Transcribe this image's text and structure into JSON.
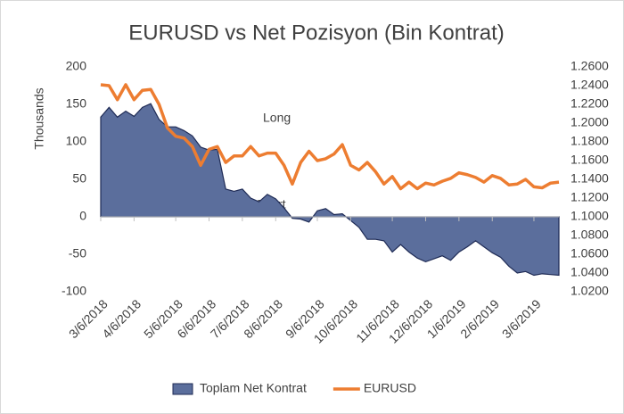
{
  "chart_data": {
    "type": "area_line",
    "title": "EURUSD vs Net Pozisyon (Bin Kontrat)",
    "ylabel": "Thousands",
    "annotations": [
      "Long",
      "Short"
    ],
    "categories": [
      "3/6/2018",
      null,
      null,
      null,
      "4/6/2018",
      null,
      null,
      null,
      null,
      "5/6/2018",
      null,
      null,
      null,
      "6/6/2018",
      null,
      null,
      null,
      "7/6/2018",
      null,
      null,
      null,
      "8/6/2018",
      null,
      null,
      null,
      null,
      "9/6/2018",
      null,
      null,
      null,
      "10/6/2018",
      null,
      null,
      null,
      null,
      "11/6/2018",
      null,
      null,
      null,
      "12/6/2018",
      null,
      null,
      null,
      "1/6/2019",
      null,
      null,
      null,
      "2/6/2019",
      null,
      null,
      null,
      null,
      "3/6/2019",
      null,
      null,
      null
    ],
    "series": [
      {
        "name": "Toplam Net Kontrat",
        "color": "#5b6e9c",
        "stroke": "#1f2b55",
        "values": [
          133,
          146,
          133,
          141,
          134,
          146,
          151,
          130,
          120,
          120,
          115,
          108,
          93,
          89,
          90,
          37,
          34,
          37,
          25,
          20,
          30,
          24,
          12,
          -2,
          -3,
          -7,
          8,
          11,
          3,
          4,
          -5,
          -14,
          -30,
          -30,
          -32,
          -47,
          -37,
          -47,
          -55,
          -60,
          -56,
          -52,
          -58,
          -47,
          -40,
          -32,
          -40,
          -48,
          -54,
          -66,
          -75,
          -73,
          -78,
          -76,
          -77,
          -78
        ]
      },
      {
        "name": "EURUSD",
        "color": "#ed7d31",
        "axis": "y2",
        "values": [
          1.241,
          1.24,
          1.225,
          1.241,
          1.225,
          1.235,
          1.236,
          1.22,
          1.195,
          1.186,
          1.184,
          1.175,
          1.155,
          1.172,
          1.175,
          1.158,
          1.165,
          1.165,
          1.175,
          1.165,
          1.168,
          1.168,
          1.155,
          1.135,
          1.158,
          1.17,
          1.16,
          1.162,
          1.167,
          1.177,
          1.155,
          1.15,
          1.158,
          1.148,
          1.135,
          1.143,
          1.13,
          1.137,
          1.13,
          1.136,
          1.134,
          1.138,
          1.141,
          1.147,
          1.145,
          1.142,
          1.137,
          1.144,
          1.141,
          1.134,
          1.135,
          1.14,
          1.132,
          1.131,
          1.136,
          1.137
        ]
      }
    ],
    "ylim": [
      -100,
      200
    ],
    "yticks": [
      -100,
      -50,
      0,
      50,
      100,
      150,
      200
    ],
    "y2lim": [
      1.02,
      1.26
    ],
    "y2ticks": [
      {
        "value": 1.02,
        "label": "1.0200"
      },
      {
        "value": 1.04,
        "label": "1.0400"
      },
      {
        "value": 1.06,
        "label": "1.0600"
      },
      {
        "value": 1.08,
        "label": "1.0800"
      },
      {
        "value": 1.1,
        "label": "1.1000"
      },
      {
        "value": 1.12,
        "label": "1.1200"
      },
      {
        "value": 1.14,
        "label": "1.1400"
      },
      {
        "value": 1.16,
        "label": "1.1600"
      },
      {
        "value": 1.18,
        "label": "1.1800"
      },
      {
        "value": 1.2,
        "label": "1.2000"
      },
      {
        "value": 1.22,
        "label": "1.2200"
      },
      {
        "value": 1.24,
        "label": "1.2400"
      },
      {
        "value": 1.26,
        "label": "1.2600"
      }
    ],
    "legend": "bottom"
  }
}
